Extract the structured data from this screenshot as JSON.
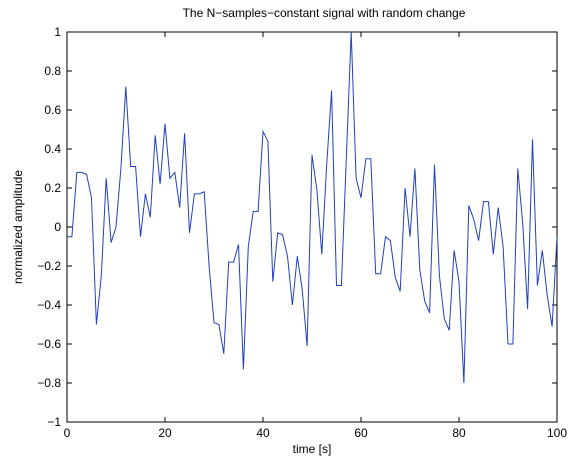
{
  "chart_data": {
    "type": "line",
    "title": "The N−samples−constant signal with random change",
    "xlabel": "time [s]",
    "ylabel": "normalized amplitude",
    "xlim": [
      0,
      100
    ],
    "ylim": [
      -1,
      1
    ],
    "xticks": [
      "0",
      "20",
      "40",
      "60",
      "80",
      "100"
    ],
    "yticks": [
      "1",
      "0.8",
      "0.6",
      "0.4",
      "0.2",
      "0",
      "−0.2",
      "−0.4",
      "−0.6",
      "−0.8",
      "−1"
    ],
    "grid": false,
    "line_color": "#2040c0",
    "series": [
      {
        "x": [
          0,
          1,
          2,
          3,
          4,
          5,
          6,
          7,
          8,
          9,
          10,
          11,
          12,
          13,
          14,
          15,
          16,
          17,
          18,
          19,
          20,
          21,
          22,
          23,
          24,
          25,
          26,
          27,
          28,
          29,
          30,
          31,
          32,
          33,
          34,
          35,
          36,
          37,
          38,
          39,
          40,
          41,
          42,
          43,
          44,
          45,
          46,
          47,
          48,
          49,
          50,
          51,
          52,
          53,
          54,
          55,
          56,
          57,
          58,
          59,
          60,
          61,
          62,
          63,
          64,
          65,
          66,
          67,
          68,
          69,
          70,
          71,
          72,
          73,
          74,
          75,
          76,
          77,
          78,
          79,
          80,
          81,
          82,
          83,
          84,
          85,
          86,
          87,
          88,
          89,
          90,
          91,
          92,
          93,
          94,
          95,
          96,
          97,
          98,
          99,
          100
        ],
        "values": [
          -0.05,
          -0.05,
          0.28,
          0.28,
          0.27,
          0.15,
          -0.5,
          -0.25,
          0.25,
          -0.08,
          0.0,
          0.3,
          0.72,
          0.31,
          0.31,
          -0.05,
          0.17,
          0.05,
          0.47,
          0.22,
          0.53,
          0.25,
          0.28,
          0.1,
          0.48,
          -0.03,
          0.17,
          0.17,
          0.18,
          -0.2,
          -0.49,
          -0.5,
          -0.65,
          -0.18,
          -0.18,
          -0.09,
          -0.73,
          -0.1,
          0.08,
          0.08,
          0.49,
          0.44,
          -0.28,
          -0.03,
          -0.04,
          -0.15,
          -0.4,
          -0.15,
          -0.32,
          -0.61,
          0.37,
          0.19,
          -0.14,
          0.32,
          0.7,
          -0.3,
          -0.3,
          0.35,
          1.0,
          0.25,
          0.15,
          0.35,
          0.35,
          -0.24,
          -0.24,
          -0.05,
          -0.07,
          -0.26,
          -0.33,
          0.2,
          -0.05,
          0.3,
          -0.22,
          -0.38,
          -0.44,
          0.32,
          -0.25,
          -0.47,
          -0.53,
          -0.12,
          -0.28,
          -0.8,
          0.11,
          0.04,
          -0.07,
          0.13,
          0.13,
          -0.14,
          0.1,
          -0.1,
          -0.6,
          -0.6,
          0.3,
          0.02,
          -0.42,
          0.45,
          -0.3,
          -0.12,
          -0.35,
          -0.51,
          -0.05
        ]
      }
    ]
  }
}
